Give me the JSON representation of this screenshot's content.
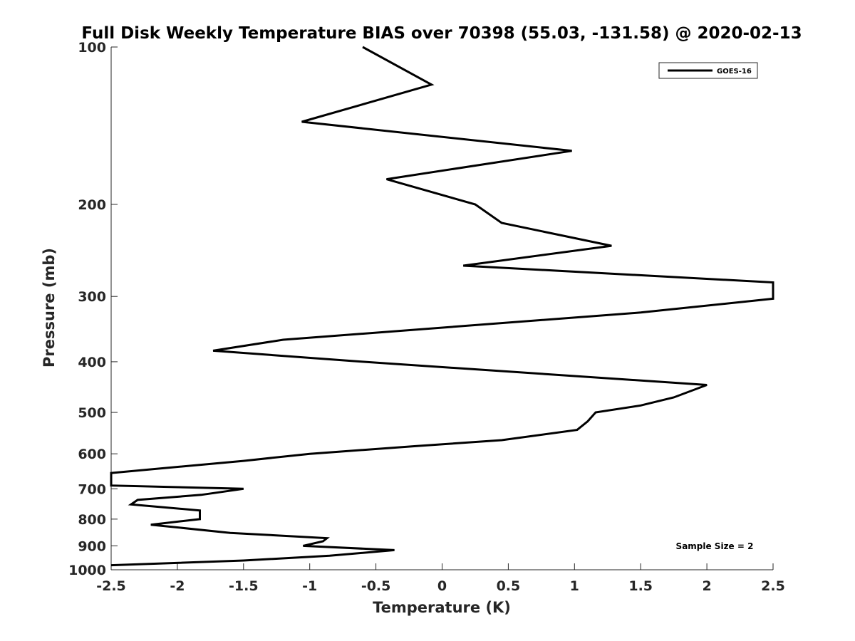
{
  "chart_data": {
    "type": "line",
    "title": "Full Disk Weekly Temperature BIAS over 70398 (55.03, -131.58) @ 2020-02-13",
    "xlabel": "Temperature (K)",
    "ylabel": "Pressure (mb)",
    "xlim": [
      -2.5,
      2.5
    ],
    "ylim": [
      1000,
      100
    ],
    "yscale": "log",
    "x_ticks": [
      -2.5,
      -2,
      -1.5,
      -1,
      -0.5,
      0,
      0.5,
      1,
      1.5,
      2,
      2.5
    ],
    "x_tick_labels": [
      "-2.5",
      "-2",
      "-1.5",
      "-1",
      "-0.5",
      "0",
      "0.5",
      "1",
      "1.5",
      "2",
      "2.5"
    ],
    "y_ticks": [
      100,
      200,
      300,
      400,
      500,
      600,
      700,
      800,
      900,
      1000
    ],
    "y_tick_labels": [
      "100",
      "200",
      "300",
      "400",
      "500",
      "600",
      "700",
      "800",
      "900",
      "1000"
    ],
    "legend": {
      "location": "top-right",
      "entries": [
        "GOES-16"
      ]
    },
    "annotation": "Sample Size = 2",
    "series": [
      {
        "name": "GOES-16",
        "color": "#000000",
        "points": [
          {
            "x": -0.6,
            "p": 100
          },
          {
            "x": -0.08,
            "p": 118
          },
          {
            "x": -1.06,
            "p": 139
          },
          {
            "x": 0.98,
            "p": 158
          },
          {
            "x": -0.42,
            "p": 179
          },
          {
            "x": 0.25,
            "p": 200
          },
          {
            "x": 0.45,
            "p": 217
          },
          {
            "x": 1.28,
            "p": 240
          },
          {
            "x": 0.16,
            "p": 262
          },
          {
            "x": 2.5,
            "p": 282
          },
          {
            "x": 2.5,
            "p": 303
          },
          {
            "x": 1.5,
            "p": 322
          },
          {
            "x": -1.2,
            "p": 363
          },
          {
            "x": -1.73,
            "p": 381
          },
          {
            "x": -0.6,
            "p": 400
          },
          {
            "x": 2.0,
            "p": 443
          },
          {
            "x": 1.75,
            "p": 468
          },
          {
            "x": 1.5,
            "p": 485
          },
          {
            "x": 1.16,
            "p": 500
          },
          {
            "x": 1.1,
            "p": 520
          },
          {
            "x": 1.02,
            "p": 540
          },
          {
            "x": 0.45,
            "p": 565
          },
          {
            "x": -0.2,
            "p": 580
          },
          {
            "x": -1.0,
            "p": 600
          },
          {
            "x": -1.5,
            "p": 619
          },
          {
            "x": -2.5,
            "p": 653
          },
          {
            "x": -2.5,
            "p": 690
          },
          {
            "x": -1.5,
            "p": 700
          },
          {
            "x": -1.82,
            "p": 719
          },
          {
            "x": -2.3,
            "p": 735
          },
          {
            "x": -2.35,
            "p": 750
          },
          {
            "x": -1.83,
            "p": 770
          },
          {
            "x": -1.83,
            "p": 800
          },
          {
            "x": -2.2,
            "p": 820
          },
          {
            "x": -1.6,
            "p": 850
          },
          {
            "x": -0.87,
            "p": 870
          },
          {
            "x": -0.9,
            "p": 882
          },
          {
            "x": -1.05,
            "p": 900
          },
          {
            "x": -0.36,
            "p": 917
          },
          {
            "x": -0.85,
            "p": 940
          },
          {
            "x": -1.5,
            "p": 960
          },
          {
            "x": -2.5,
            "p": 980
          }
        ]
      }
    ]
  }
}
